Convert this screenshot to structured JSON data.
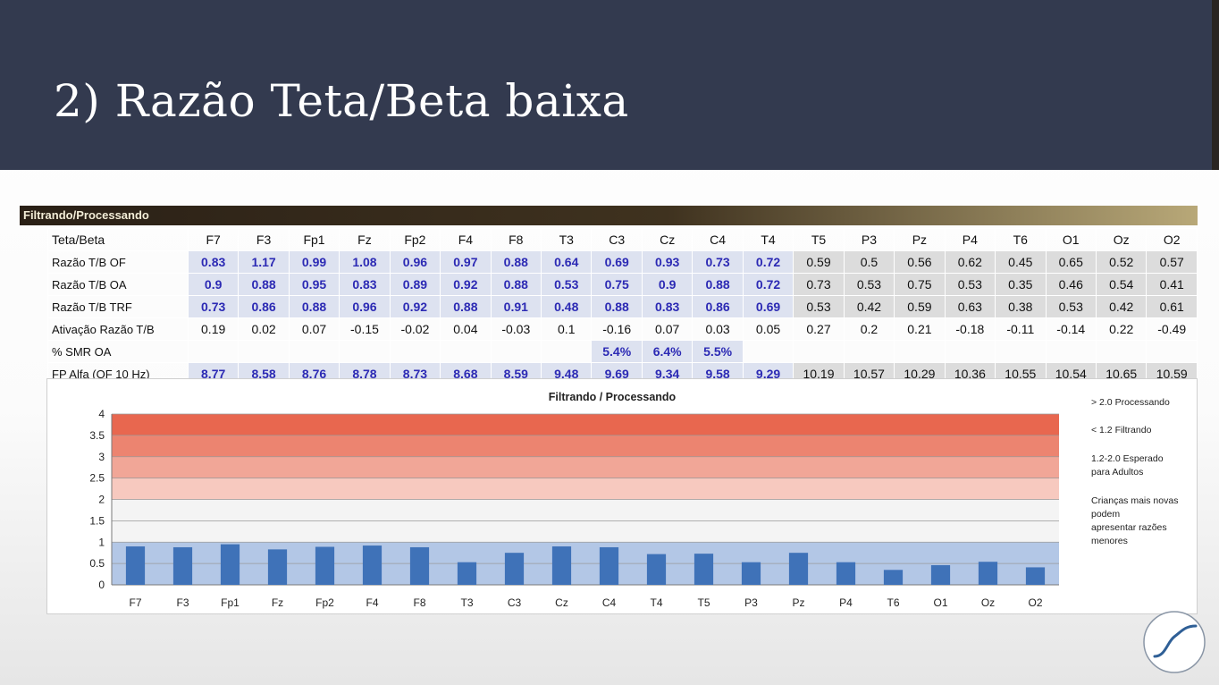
{
  "slide": {
    "title": "2) Razão Teta/Beta baixa"
  },
  "sheet": {
    "title": "Filtrando/Processando",
    "corner_label": "Teta/Beta",
    "columns": [
      "F7",
      "F3",
      "Fp1",
      "Fz",
      "Fp2",
      "F4",
      "F8",
      "T3",
      "C3",
      "Cz",
      "C4",
      "T4",
      "T5",
      "P3",
      "Pz",
      "P4",
      "T6",
      "O1",
      "Oz",
      "O2"
    ],
    "rows": [
      {
        "label": "Razão T/B OF",
        "values": [
          "0.83",
          "1.17",
          "0.99",
          "1.08",
          "0.96",
          "0.97",
          "0.88",
          "0.64",
          "0.69",
          "0.93",
          "0.73",
          "0.72",
          "0.59",
          "0.5",
          "0.56",
          "0.62",
          "0.45",
          "0.65",
          "0.52",
          "0.57"
        ]
      },
      {
        "label": "Razão T/B OA",
        "values": [
          "0.9",
          "0.88",
          "0.95",
          "0.83",
          "0.89",
          "0.92",
          "0.88",
          "0.53",
          "0.75",
          "0.9",
          "0.88",
          "0.72",
          "0.73",
          "0.53",
          "0.75",
          "0.53",
          "0.35",
          "0.46",
          "0.54",
          "0.41"
        ]
      },
      {
        "label": "Razão T/B TRF",
        "values": [
          "0.73",
          "0.86",
          "0.88",
          "0.96",
          "0.92",
          "0.88",
          "0.91",
          "0.48",
          "0.88",
          "0.83",
          "0.86",
          "0.69",
          "0.53",
          "0.42",
          "0.59",
          "0.63",
          "0.38",
          "0.53",
          "0.42",
          "0.61"
        ]
      },
      {
        "label": "Ativação  Razão T/B",
        "values": [
          "0.19",
          "0.02",
          "0.07",
          "-0.15",
          "-0.02",
          "0.04",
          "-0.03",
          "0.1",
          "-0.16",
          "0.07",
          "0.03",
          "0.05",
          "0.27",
          "0.2",
          "0.21",
          "-0.18",
          "-0.11",
          "-0.14",
          "0.22",
          "-0.49"
        ]
      },
      {
        "label": "% SMR OA",
        "values": [
          "",
          "",
          "",
          "",
          "",
          "",
          "",
          "",
          "5.4%",
          "6.4%",
          "5.5%",
          "",
          "",
          "",
          "",
          "",
          "",
          "",
          "",
          ""
        ]
      },
      {
        "label": "FP Alfa (OF 10 Hz)",
        "values": [
          "8.77",
          "8.58",
          "8.76",
          "8.78",
          "8.73",
          "8.68",
          "8.59",
          "9.48",
          "9.69",
          "9.34",
          "9.58",
          "9.29",
          "10.19",
          "10.57",
          "10.29",
          "10.36",
          "10.55",
          "10.54",
          "10.65",
          "10.59"
        ]
      }
    ]
  },
  "chart_data": {
    "type": "bar",
    "title": "Filtrando / Processando",
    "categories": [
      "F7",
      "F3",
      "Fp1",
      "Fz",
      "Fp2",
      "F4",
      "F8",
      "T3",
      "C3",
      "Cz",
      "C4",
      "T4",
      "T5",
      "P3",
      "Pz",
      "P4",
      "T6",
      "O1",
      "Oz",
      "O2"
    ],
    "values": [
      0.9,
      0.88,
      0.95,
      0.83,
      0.89,
      0.92,
      0.88,
      0.53,
      0.75,
      0.9,
      0.88,
      0.72,
      0.73,
      0.53,
      0.75,
      0.53,
      0.35,
      0.46,
      0.54,
      0.41
    ],
    "ylim": [
      0,
      4
    ],
    "yticks": [
      "0",
      "0.5",
      "1",
      "1.5",
      "2",
      "2.5",
      "3",
      "3.5",
      "4"
    ],
    "bar_color": "#3f72b8",
    "bands": [
      {
        "from": 3.5,
        "to": 4.0,
        "color": "#e8674f"
      },
      {
        "from": 3.0,
        "to": 3.5,
        "color": "#ec8470"
      },
      {
        "from": 2.5,
        "to": 3.0,
        "color": "#f1a697"
      },
      {
        "from": 2.0,
        "to": 2.5,
        "color": "#f7c9bf"
      },
      {
        "from": 1.0,
        "to": 2.0,
        "color": "#f4f4f4"
      },
      {
        "from": 0.0,
        "to": 1.0,
        "color": "#b3c7e6"
      }
    ],
    "legend": [
      "> 2.0 Processando",
      "< 1.2 Filtrando",
      "1.2-2.0 Esperado\npara Adultos",
      "Crianças mais novas\npodem\napresentar razões\nmenores"
    ],
    "grid": true
  }
}
